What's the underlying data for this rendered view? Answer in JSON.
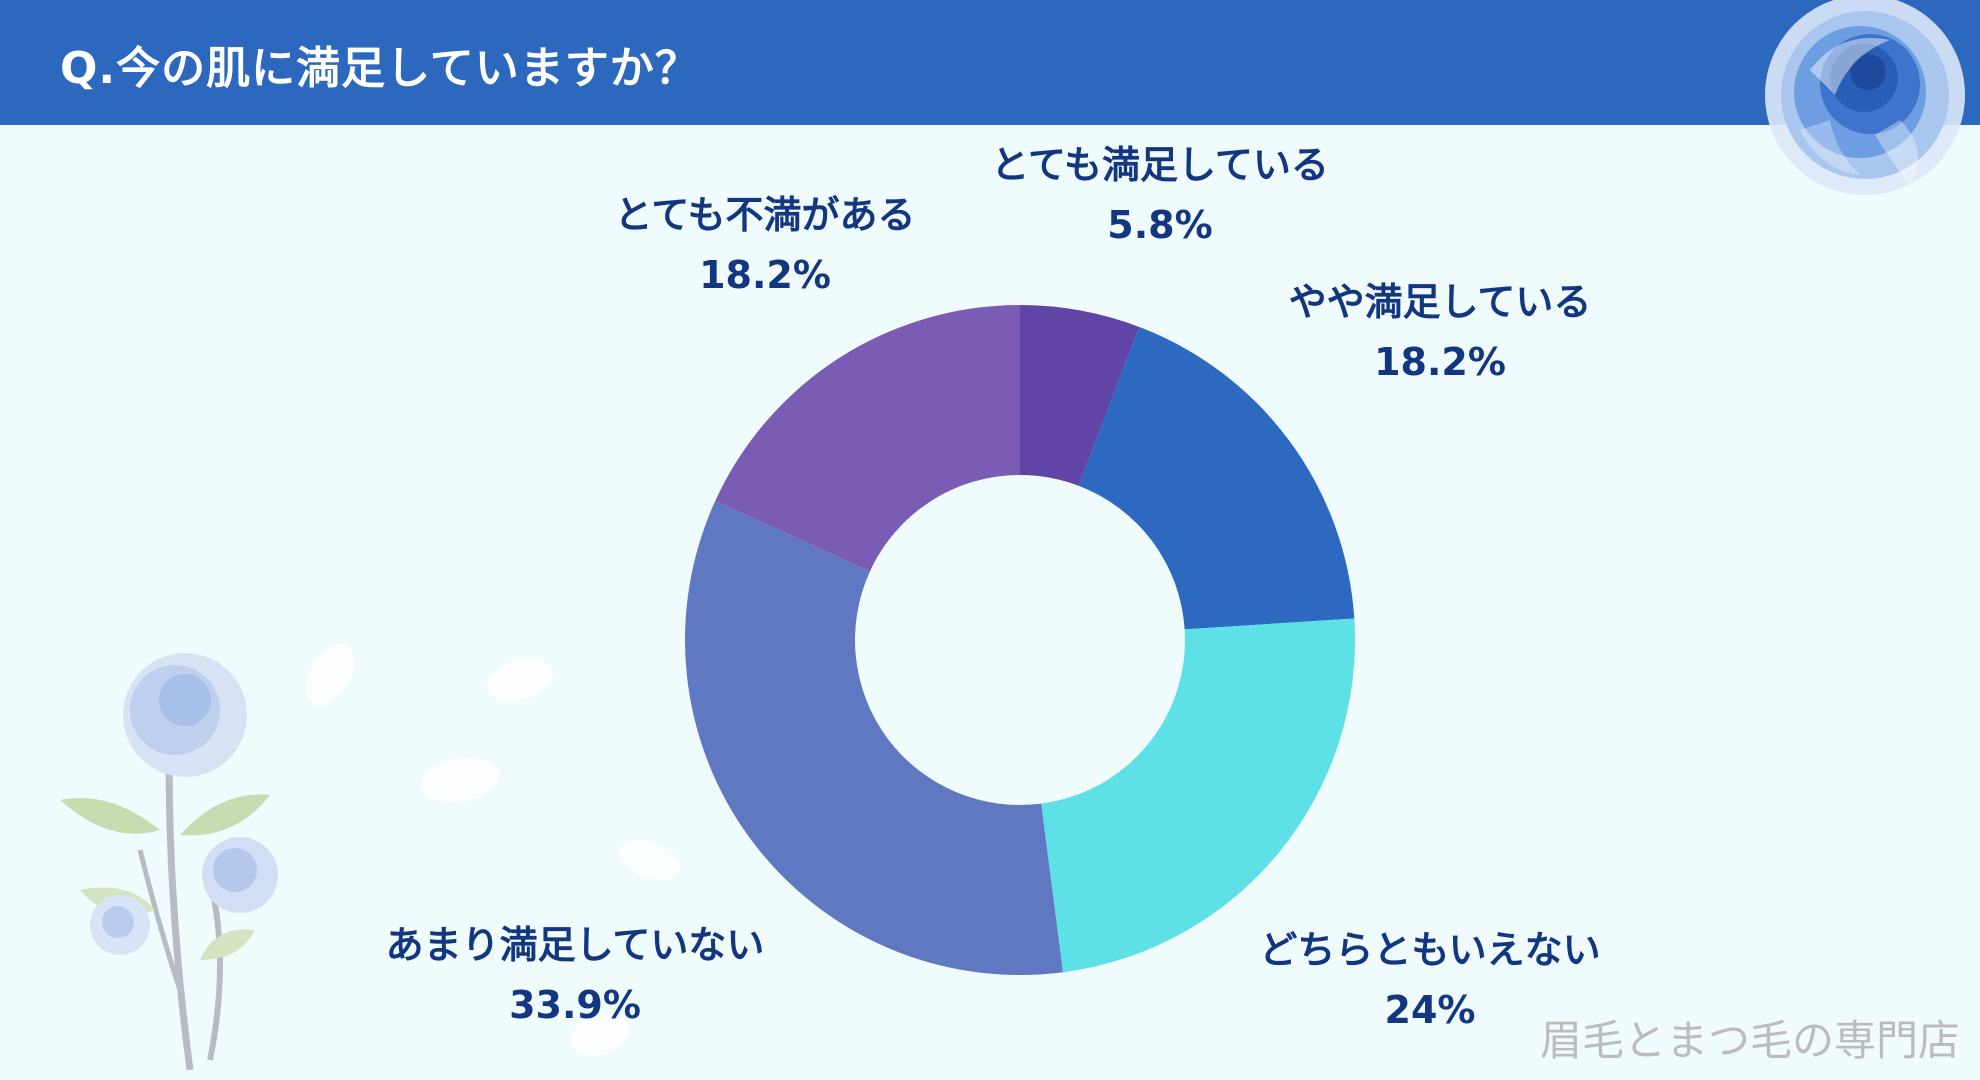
{
  "header": {
    "title": "Q.今の肌に満足していますか？"
  },
  "watermark": "眉毛とまつ毛の専門店",
  "colors": {
    "header_bg": "#2d68bf",
    "page_bg": "#f0fbfd",
    "label_text": "#12367f"
  },
  "chart_data": {
    "type": "pie",
    "donut": true,
    "start": "top, clockwise",
    "slices": [
      {
        "label": "とても満足している",
        "value_label": "5.8%",
        "value": 5.8,
        "color": "#6045a6"
      },
      {
        "label": "やや満足している",
        "value_label": "18.2%",
        "value": 18.2,
        "color": "#2e69c1"
      },
      {
        "label": "どちらともいえない",
        "value_label": "24%",
        "value": 24,
        "color": "#5ee1e6"
      },
      {
        "label": "あまり満足していない",
        "value_label": "33.9%",
        "value": 33.9,
        "color": "#6078c2"
      },
      {
        "label": "とても不満がある",
        "value_label": "18.2%",
        "value": 18.2,
        "color": "#7b5cb5"
      }
    ]
  }
}
